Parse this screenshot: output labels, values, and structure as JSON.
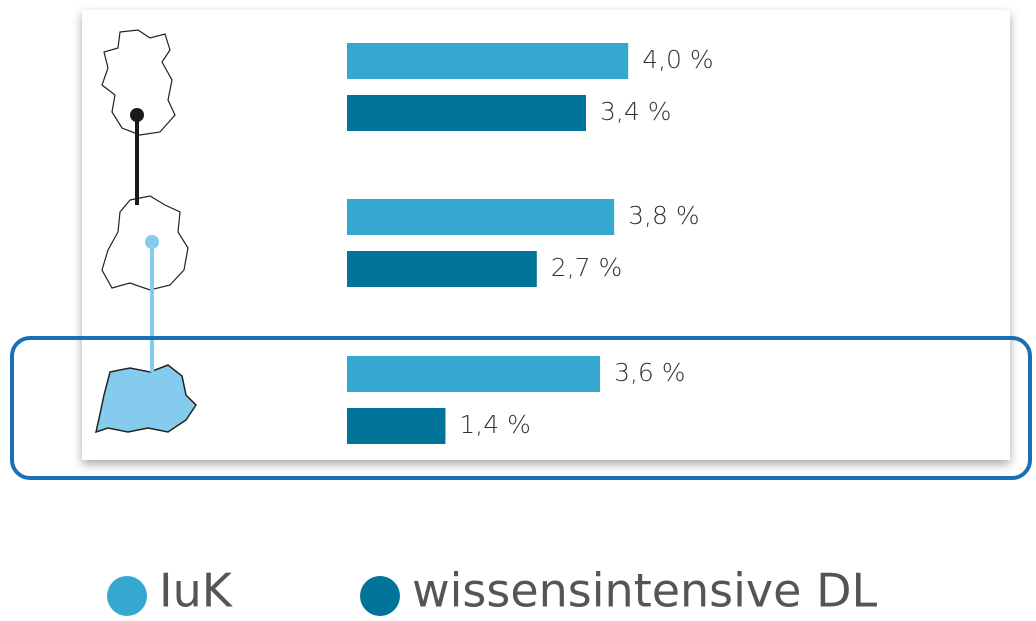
{
  "chart_data": {
    "type": "hbar",
    "categories": [
      null,
      null,
      null
    ],
    "series": [
      {
        "name": "IuK",
        "color": "#35a8d0",
        "values": [
          4.0,
          3.8,
          3.6
        ],
        "value_labels": [
          "4,0 %",
          "3,8 %",
          "3,6 %"
        ]
      },
      {
        "name": "wissensintensive DL",
        "color": "#007599",
        "values": [
          3.4,
          2.7,
          1.4
        ],
        "value_labels": [
          "3,4 %",
          "2,7 %",
          "1,4 %"
        ]
      }
    ],
    "legend": "bottom"
  }
}
